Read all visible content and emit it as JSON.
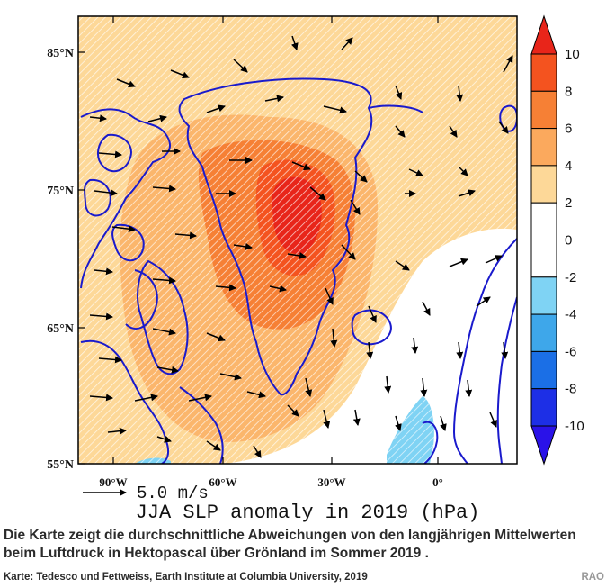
{
  "map": {
    "title": "JJA SLP anomaly in 2019 (hPa)",
    "reference_vector": "5.0 m/s",
    "lat_labels": [
      "85°N",
      "75°N",
      "65°N",
      "55°N"
    ],
    "lon_labels": [
      "90°W",
      "60°W",
      "30°W",
      "0°"
    ],
    "colorbar": {
      "labels": [
        "10",
        "8",
        "6",
        "4",
        "2",
        "0",
        "-2",
        "-4",
        "-6",
        "-8",
        "-10"
      ],
      "colors": [
        "#e8251a",
        "#f4531f",
        "#f68035",
        "#fba95d",
        "#fdd898",
        "#ffffff",
        "#ffffff",
        "#7fd3f4",
        "#3ea7ea",
        "#1b6fe6",
        "#1d2fe6",
        "#2a12e8"
      ]
    },
    "colors": {
      "coast": "#1a1acc",
      "anomaly_2_4": "#fdd898",
      "anomaly_4_6": "#fbb66c",
      "anomaly_6_8": "#f68035",
      "anomaly_8_10": "#f4531f",
      "anomaly_gt_10": "#e8251a",
      "anomaly_neg": "#7fd3f4"
    }
  },
  "caption": "Die Karte zeigt die durchschnittliche Abweichungen von den langjährigen Mittelwerten beim Luftdruck in Hektopascal über Grönland im Sommer 2019 .",
  "credit": "Karte: Tedesco und Fettweiss, Earth Institute at Columbia University, 2019",
  "brand": "RAO"
}
